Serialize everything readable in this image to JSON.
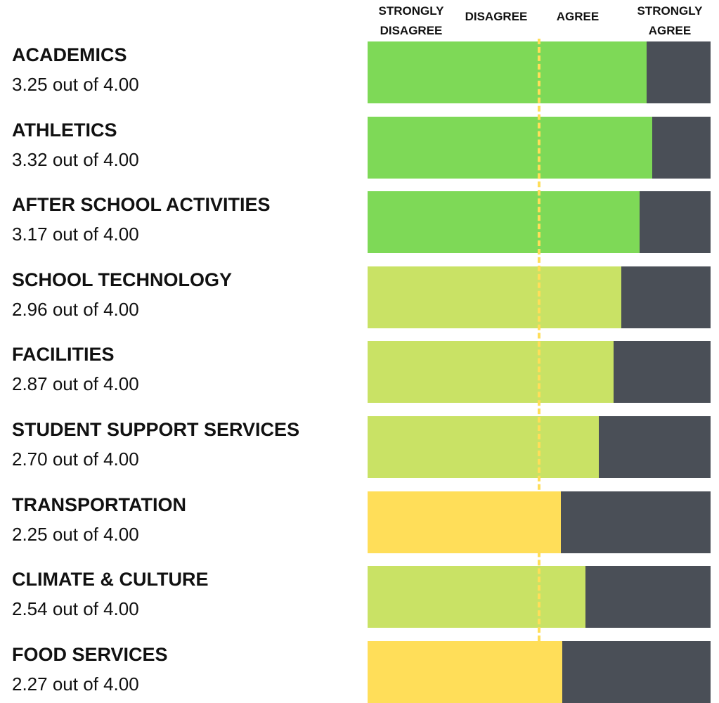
{
  "chart_data": {
    "type": "bar",
    "orientation": "horizontal",
    "scale_labels": [
      "STRONGLY DISAGREE",
      "DISAGREE",
      "AGREE",
      "STRONGLY AGREE"
    ],
    "categories": [
      "ACADEMICS",
      "ATHLETICS",
      "AFTER SCHOOL ACTIVITIES",
      "SCHOOL TECHNOLOGY",
      "FACILITIES",
      "STUDENT SUPPORT SERVICES",
      "TRANSPORTATION",
      "CLIMATE & CULTURE",
      "FOOD SERVICES"
    ],
    "values": [
      3.25,
      3.32,
      3.17,
      2.96,
      2.87,
      2.7,
      2.25,
      2.54,
      2.27
    ],
    "value_labels": [
      "3.25 out of 4.00",
      "3.32 out of 4.00",
      "3.17 out of 4.00",
      "2.96 out of 4.00",
      "2.87 out of 4.00",
      "2.70 out of 4.00",
      "2.25 out of 4.00",
      "2.54 out of 4.00",
      "2.27 out of 4.00"
    ],
    "colors": [
      "#7ed957",
      "#7ed957",
      "#7ed957",
      "#c9e265",
      "#c9e265",
      "#c9e265",
      "#ffde59",
      "#c9e265",
      "#ffde59"
    ],
    "track_color": "#4a4f57",
    "xlim": [
      0,
      4
    ],
    "reference_line": {
      "value": 2,
      "color": "#ffde59"
    }
  }
}
